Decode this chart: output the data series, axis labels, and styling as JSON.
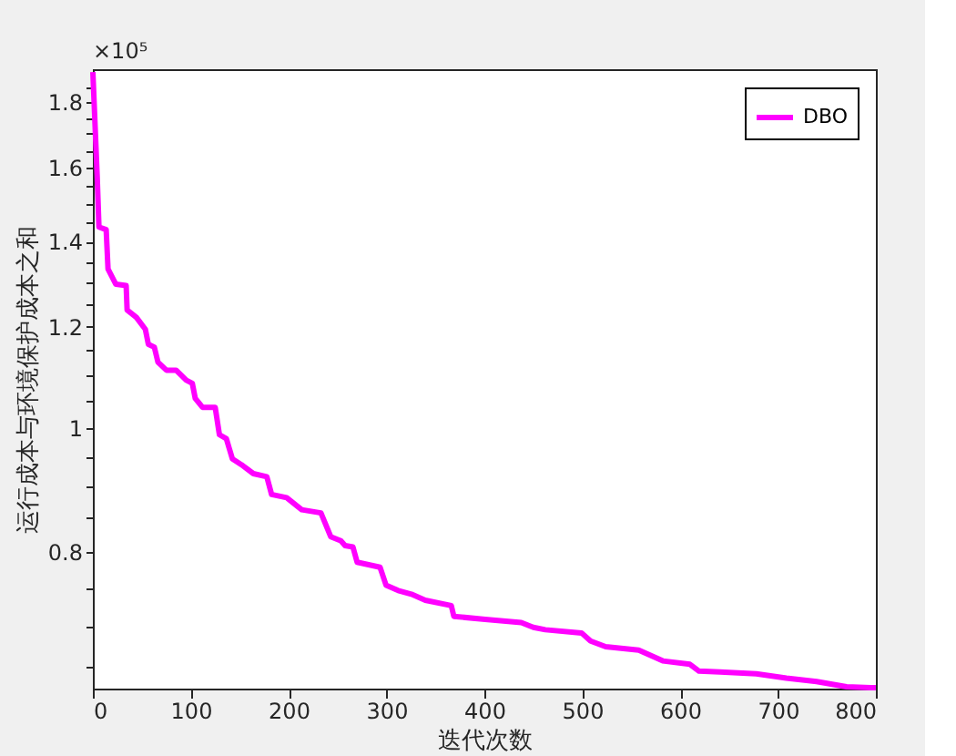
{
  "chart_data": {
    "type": "line",
    "xlabel": "迭代次数",
    "ylabel": "运行成本与环境保护成本之和",
    "annotations": [
      "×10⁵"
    ],
    "x": [
      0,
      4.4,
      6.2,
      13.6,
      15.5,
      23.5,
      34,
      35,
      44.4,
      53.6,
      56.7,
      62.8,
      66.5,
      75.1,
      85,
      95.4,
      101.6,
      104.6,
      112,
      125,
      129.3,
      136.4,
      142.5,
      151.8,
      164,
      177.7,
      182.6,
      198,
      213.4,
      233,
      243,
      253.4,
      257.7,
      265.7,
      270,
      293.4,
      299.6,
      311.9,
      325.4,
      339.6,
      366.2,
      368.8,
      400.8,
      437.7,
      450,
      462.3,
      499.3,
      508.5,
      523.9,
      557.7,
      582.3,
      610,
      619.3,
      640.8,
      677.8,
      708.6,
      739.4,
      770.1,
      794.7,
      800
    ],
    "series": [
      {
        "name": "DBO",
        "color": "#ff00ff",
        "values": [
          1.9,
          1.575,
          1.437,
          1.43,
          1.332,
          1.296,
          1.293,
          1.237,
          1.221,
          1.195,
          1.163,
          1.157,
          1.126,
          1.11,
          1.11,
          1.09,
          1.084,
          1.055,
          1.038,
          1.038,
          0.988,
          0.981,
          0.946,
          0.936,
          0.921,
          0.916,
          0.887,
          0.882,
          0.863,
          0.858,
          0.822,
          0.816,
          0.809,
          0.807,
          0.785,
          0.778,
          0.753,
          0.746,
          0.741,
          0.733,
          0.726,
          0.712,
          0.708,
          0.704,
          0.698,
          0.695,
          0.691,
          0.681,
          0.674,
          0.67,
          0.657,
          0.653,
          0.645,
          0.644,
          0.642,
          0.637,
          0.633,
          0.627,
          0.626,
          0.626
        ]
      }
    ],
    "xlim": [
      0,
      800
    ],
    "xticks": [
      0,
      100,
      200,
      300,
      400,
      500,
      600,
      700,
      800
    ],
    "ylim": [
      0.625,
      1.91
    ],
    "log": true,
    "yticks": [
      {
        "value": 0.65,
        "label": null
      },
      {
        "value": 0.7,
        "label": null
      },
      {
        "value": 0.75,
        "label": null
      },
      0.8,
      {
        "value": 0.85,
        "label": null
      },
      {
        "value": 0.9,
        "label": null
      },
      {
        "value": 0.95,
        "label": null
      },
      1,
      {
        "value": 1.05,
        "label": null
      },
      {
        "value": 1.1,
        "label": null
      },
      {
        "value": 1.15,
        "label": null
      },
      1.2,
      {
        "value": 1.25,
        "label": null
      },
      {
        "value": 1.3,
        "label": null
      },
      {
        "value": 1.35,
        "label": null
      },
      1.4,
      {
        "value": 1.45,
        "label": null
      },
      {
        "value": 1.5,
        "label": null
      },
      {
        "value": 1.55,
        "label": null
      },
      1.6,
      {
        "value": 1.65,
        "label": null
      },
      {
        "value": 1.7,
        "label": null
      },
      {
        "value": 1.75,
        "label": null
      },
      1.8,
      {
        "value": 1.85,
        "label": null
      }
    ],
    "grid": false,
    "legend": "top right",
    "line_style": "solid",
    "marker": "none"
  }
}
